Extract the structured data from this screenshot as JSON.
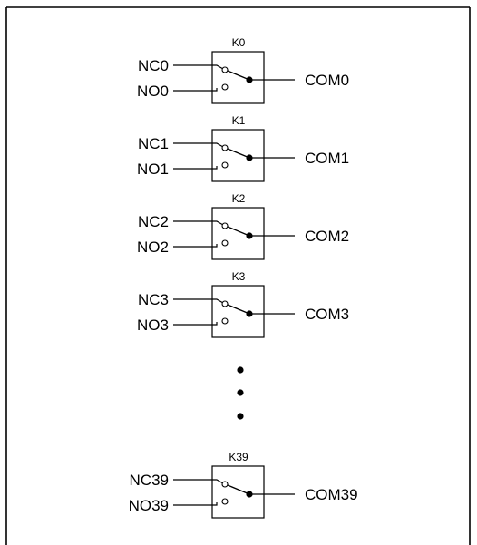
{
  "relays": [
    {
      "label": "K0",
      "nc": "NC0",
      "no": "NO0",
      "com": "COM0"
    },
    {
      "label": "K1",
      "nc": "NC1",
      "no": "NO1",
      "com": "COM1"
    },
    {
      "label": "K2",
      "nc": "NC2",
      "no": "NO2",
      "com": "COM2"
    },
    {
      "label": "K3",
      "nc": "NC3",
      "no": "NO3",
      "com": "COM3"
    },
    {
      "label": "K39",
      "nc": "NC39",
      "no": "NO39",
      "com": "COM39"
    }
  ],
  "ellipsis_dot_count": 3
}
